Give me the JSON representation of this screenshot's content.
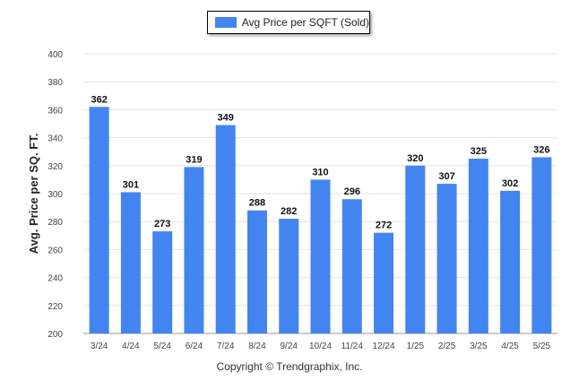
{
  "chart_data": {
    "type": "bar",
    "legend": "Avg Price per SQFT (Sold)",
    "ylabel": "Avg. Price per SQ. FT.",
    "xlabel": "",
    "ylim": [
      200,
      400
    ],
    "yticks": [
      200,
      220,
      240,
      260,
      280,
      300,
      320,
      340,
      360,
      380,
      400
    ],
    "categories": [
      "3/24",
      "4/24",
      "5/24",
      "6/24",
      "7/24",
      "8/24",
      "9/24",
      "10/24",
      "11/24",
      "12/24",
      "1/25",
      "2/25",
      "3/25",
      "4/25",
      "5/25"
    ],
    "series": [
      {
        "name": "Avg Price per SQFT (Sold)",
        "values": [
          362,
          301,
          273,
          319,
          349,
          288,
          282,
          310,
          296,
          272,
          320,
          307,
          325,
          302,
          326
        ]
      }
    ],
    "bar_color": "#4385f0",
    "grid": true,
    "legend_position": "top-center"
  },
  "footer": {
    "copyright": "Copyright © Trendgraphix, Inc."
  }
}
